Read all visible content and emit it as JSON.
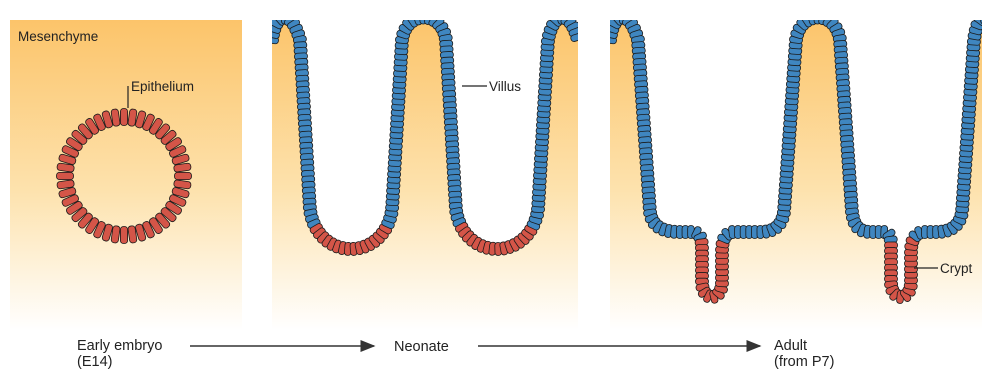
{
  "labels": {
    "mesenchyme": "Mesenchyme",
    "epithelium": "Epithelium",
    "villus": "Villus",
    "crypt": "Crypt"
  },
  "timeline": {
    "stage1_line1": "Early embryo",
    "stage1_line2": "(E14)",
    "stage2": "Neonate",
    "stage3_line1": "Adult",
    "stage3_line2": "(from P7)"
  },
  "colors": {
    "mesenchyme_top": "#fcc46a",
    "mesenchyme_bottom": "#ffffff",
    "epithelium_red": "#d45548",
    "villus_blue": "#3f86c0",
    "cell_outline": "#1a1a1a",
    "text": "#222222",
    "arrow": "#333333"
  }
}
